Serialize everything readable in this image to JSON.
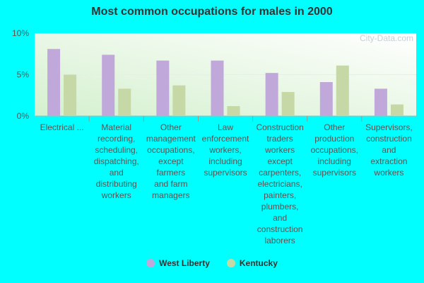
{
  "chart_data": {
    "type": "bar",
    "title": "Most common occupations for males in 2000",
    "watermark": "City-Data.com",
    "categories": [
      "Electrical ...",
      "Material recording, scheduling, dispatching, and distributing workers",
      "Other management occupations, except farmers and farm managers",
      "Law enforcement workers, including supervisors",
      "Construction traders workers except carpenters, electricians, painters, plumbers, and construction laborers",
      "Other production occupations, including supervisors",
      "Supervisors, construction and extraction workers"
    ],
    "category_lines": [
      [
        "Electrical ..."
      ],
      [
        "Material",
        "recording,",
        "scheduling,",
        "dispatching,",
        "and",
        "distributing",
        "workers"
      ],
      [
        "Other",
        "management",
        "occupations,",
        "except",
        "farmers",
        "and farm",
        "managers"
      ],
      [
        "Law",
        "enforcement",
        "workers,",
        "including",
        "supervisors"
      ],
      [
        "Construction",
        "traders",
        "workers",
        "except",
        "carpenters,",
        "electricians,",
        "painters,",
        "plumbers,",
        "and",
        "construction",
        "laborers"
      ],
      [
        "Other",
        "production",
        "occupations,",
        "including",
        "supervisors"
      ],
      [
        "Supervisors,",
        "construction",
        "and",
        "extraction",
        "workers"
      ]
    ],
    "series": [
      {
        "name": "West Liberty",
        "color": "#C0A8DA",
        "values": [
          8.1,
          7.4,
          6.7,
          6.7,
          5.2,
          4.1,
          3.3
        ]
      },
      {
        "name": "Kentucky",
        "color": "#C5D8A6",
        "values": [
          5.0,
          3.3,
          3.7,
          1.2,
          2.9,
          6.1,
          1.4
        ]
      }
    ],
    "yticks": [
      "0%",
      "5%",
      "10%"
    ],
    "ylim": [
      0,
      10
    ],
    "grid": true,
    "legend_position": "bottom"
  }
}
